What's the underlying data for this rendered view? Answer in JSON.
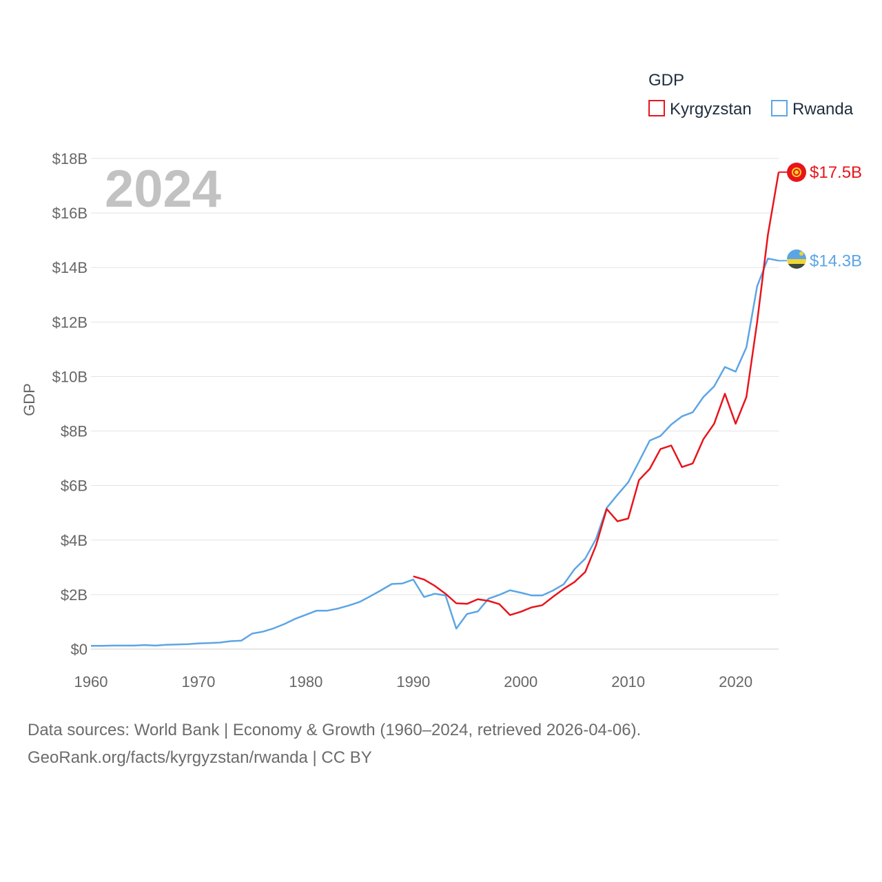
{
  "chart_data": {
    "type": "line",
    "title": "GDP",
    "year_label": "2024",
    "ylabel": "GDP",
    "xlabel": "",
    "xlim": [
      1960,
      2024
    ],
    "ylim": [
      0,
      18
    ],
    "y_ticks": [
      0,
      2,
      4,
      6,
      8,
      10,
      12,
      14,
      16,
      18
    ],
    "y_tick_labels": [
      "$0",
      "$2B",
      "$4B",
      "$6B",
      "$8B",
      "$10B",
      "$12B",
      "$14B",
      "$16B",
      "$18B"
    ],
    "x_ticks": [
      1960,
      1970,
      1980,
      1990,
      2000,
      2010,
      2020
    ],
    "x_tick_labels": [
      "1960",
      "1970",
      "1980",
      "1990",
      "2000",
      "2010",
      "2020"
    ],
    "grid": true,
    "legend_position": "top-right",
    "series": [
      {
        "name": "Kyrgyzstan",
        "color": "#e8141b",
        "end_label": "$17.5B",
        "flag_icon": "kyrgyzstan-flag-icon",
        "x": [
          1990,
          1991,
          1992,
          1993,
          1994,
          1995,
          1996,
          1997,
          1998,
          1999,
          2000,
          2001,
          2002,
          2003,
          2004,
          2005,
          2006,
          2007,
          2008,
          2009,
          2010,
          2011,
          2012,
          2013,
          2014,
          2015,
          2016,
          2017,
          2018,
          2019,
          2020,
          2021,
          2022,
          2023,
          2024
        ],
        "values": [
          2.67,
          2.55,
          2.32,
          2.03,
          1.68,
          1.66,
          1.83,
          1.77,
          1.65,
          1.25,
          1.37,
          1.53,
          1.61,
          1.92,
          2.21,
          2.46,
          2.83,
          3.8,
          5.14,
          4.69,
          4.79,
          6.2,
          6.61,
          7.34,
          7.47,
          6.68,
          6.81,
          7.7,
          8.27,
          9.37,
          8.27,
          9.25,
          12.0,
          15.2,
          17.5
        ]
      },
      {
        "name": "Rwanda",
        "color": "#5ca5e5",
        "end_label": "$14.3B",
        "flag_icon": "rwanda-flag-icon",
        "x": [
          1960,
          1961,
          1962,
          1963,
          1964,
          1965,
          1966,
          1967,
          1968,
          1969,
          1970,
          1971,
          1972,
          1973,
          1974,
          1975,
          1976,
          1977,
          1978,
          1979,
          1980,
          1981,
          1982,
          1983,
          1984,
          1985,
          1986,
          1987,
          1988,
          1989,
          1990,
          1991,
          1992,
          1993,
          1994,
          1995,
          1996,
          1997,
          1998,
          1999,
          2000,
          2001,
          2002,
          2003,
          2004,
          2005,
          2006,
          2007,
          2008,
          2009,
          2010,
          2011,
          2012,
          2013,
          2014,
          2015,
          2016,
          2017,
          2018,
          2019,
          2020,
          2021,
          2022,
          2023,
          2024
        ],
        "values": [
          0.12,
          0.12,
          0.13,
          0.13,
          0.13,
          0.15,
          0.13,
          0.16,
          0.17,
          0.18,
          0.21,
          0.22,
          0.24,
          0.29,
          0.31,
          0.57,
          0.64,
          0.76,
          0.92,
          1.11,
          1.26,
          1.41,
          1.41,
          1.49,
          1.6,
          1.73,
          1.94,
          2.16,
          2.39,
          2.41,
          2.55,
          1.91,
          2.03,
          1.97,
          0.75,
          1.29,
          1.38,
          1.85,
          1.99,
          2.16,
          2.07,
          1.97,
          1.97,
          2.15,
          2.38,
          2.93,
          3.32,
          4.04,
          5.18,
          5.66,
          6.12,
          6.88,
          7.65,
          7.82,
          8.24,
          8.54,
          8.69,
          9.25,
          9.64,
          10.35,
          10.18,
          11.07,
          13.31,
          14.33,
          14.25
        ]
      }
    ]
  },
  "source": {
    "line1": "Data sources: World Bank | Economy & Growth (1960–2024, retrieved 2026-04-06).",
    "line2": "GeoRank.org/facts/kyrgyzstan/rwanda | CC BY"
  }
}
